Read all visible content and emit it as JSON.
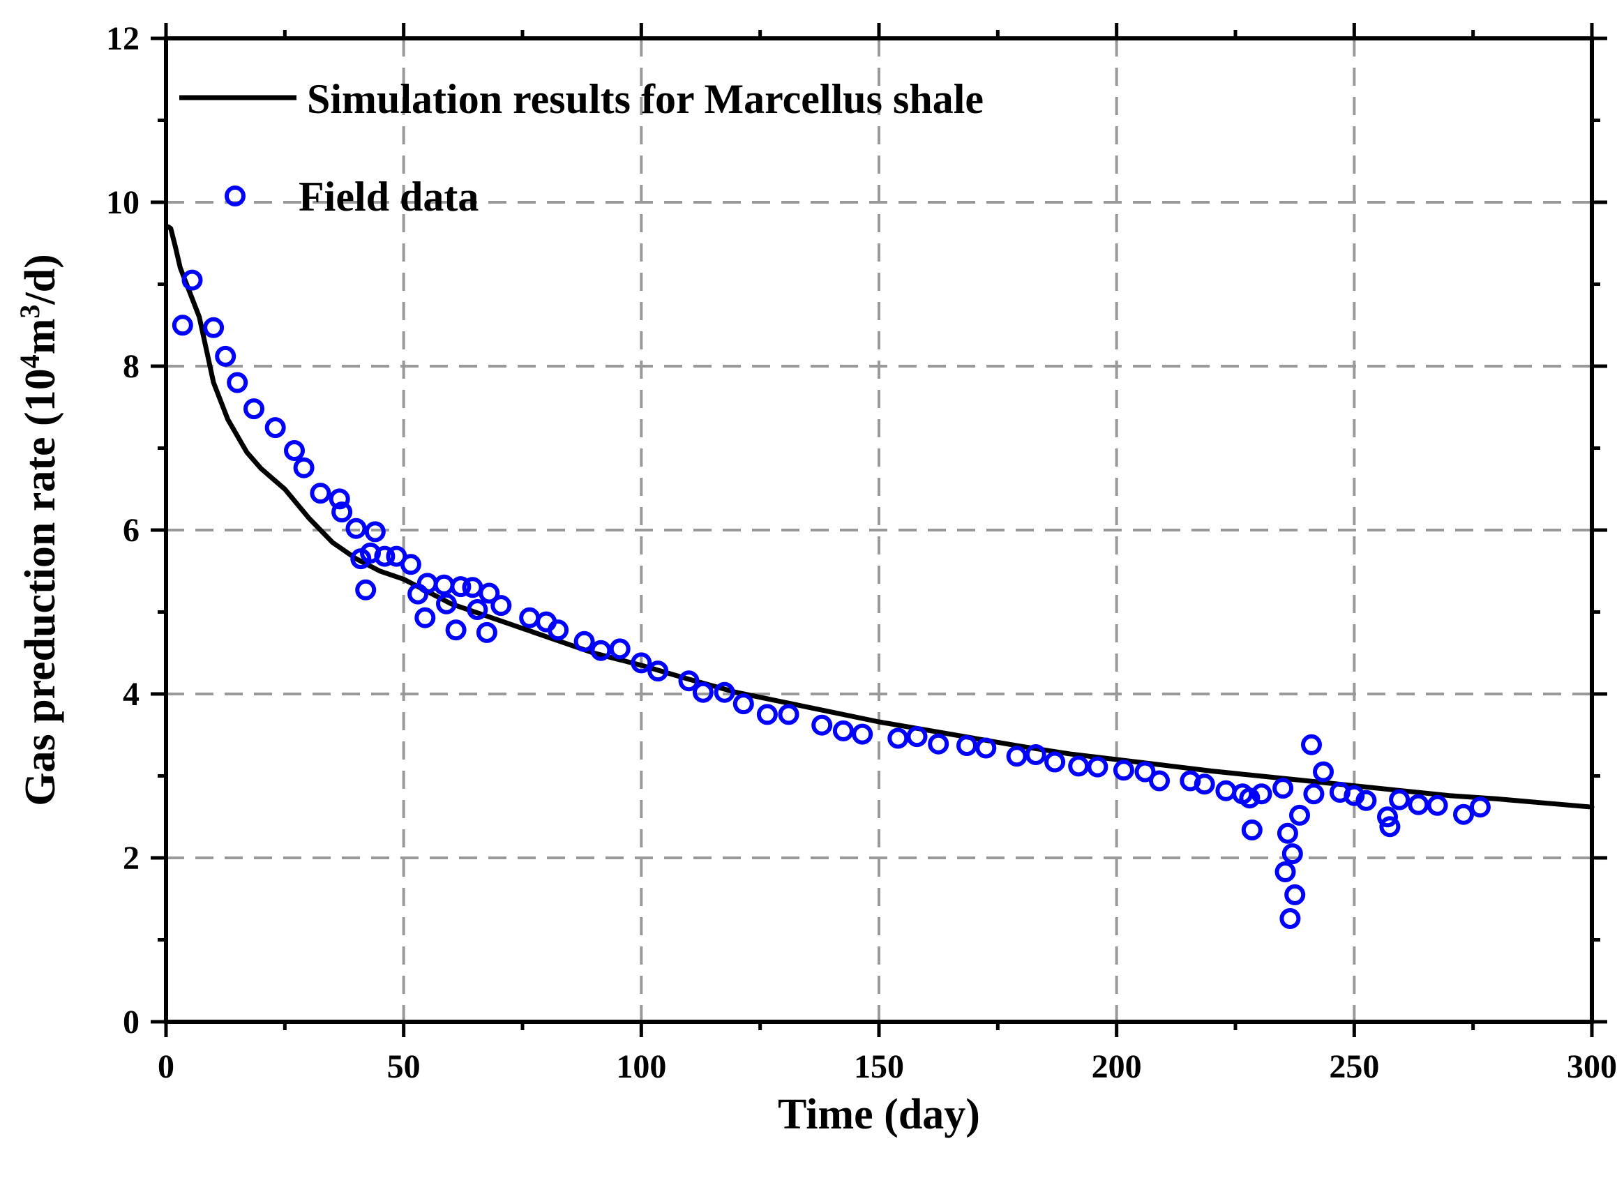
{
  "chart_data": {
    "type": "line+scatter",
    "title": "",
    "xlabel": "Time (day)",
    "ylabel": {
      "prefix": "Gas preduction rate (10",
      "sup1": "4",
      "mid": "m",
      "sup2": "3",
      "suffix": "/d)"
    },
    "xlim": [
      0,
      300
    ],
    "ylim": [
      0,
      12
    ],
    "xticks": [
      0,
      50,
      100,
      150,
      200,
      250,
      300
    ],
    "xtick_labels": [
      "0",
      "50",
      "100",
      "150",
      "200",
      "250",
      "300"
    ],
    "yticks": [
      0,
      2,
      4,
      6,
      8,
      10,
      12
    ],
    "ytick_labels": [
      "0",
      "2",
      "4",
      "6",
      "8",
      "10",
      "12"
    ],
    "grid": true,
    "legend_position": "top-left",
    "colors": {
      "simulation": "#000000",
      "field": "#0000ff",
      "grid": "#999999"
    },
    "series": [
      {
        "name": "Simulation results for Marcellus shale",
        "kind": "line",
        "x": [
          0.5,
          1,
          2,
          3,
          5,
          7,
          10,
          13,
          17,
          20,
          25,
          30,
          35,
          40,
          45,
          50,
          60,
          70,
          80,
          90,
          100,
          110,
          120,
          130,
          140,
          150,
          160,
          170,
          180,
          190,
          200,
          210,
          220,
          230,
          240,
          250,
          260,
          270,
          280,
          290,
          300
        ],
        "y": [
          9.7,
          9.68,
          9.45,
          9.2,
          8.9,
          8.6,
          7.8,
          7.35,
          6.95,
          6.75,
          6.5,
          6.15,
          5.85,
          5.65,
          5.5,
          5.4,
          5.1,
          4.9,
          4.7,
          4.5,
          4.35,
          4.18,
          4.02,
          3.9,
          3.78,
          3.66,
          3.56,
          3.46,
          3.36,
          3.27,
          3.2,
          3.13,
          3.06,
          3.0,
          2.94,
          2.88,
          2.82,
          2.76,
          2.72,
          2.67,
          2.62
        ]
      },
      {
        "name": "Field data",
        "kind": "scatter",
        "x": [
          3.5,
          5.5,
          10,
          12.5,
          15,
          18.5,
          23,
          27,
          29,
          32.5,
          36.5,
          37,
          40,
          41,
          42,
          43,
          44,
          46,
          48.5,
          51.5,
          53,
          54.5,
          55,
          58.5,
          59,
          61,
          62,
          64.5,
          65.5,
          67.5,
          68,
          70.5,
          76.5,
          80,
          82.5,
          88,
          91.5,
          95.5,
          100,
          103.5,
          110,
          113,
          117.5,
          121.5,
          126.5,
          131,
          138,
          142.5,
          146.5,
          154,
          158,
          162.5,
          168.5,
          172.5,
          179,
          183,
          187,
          192,
          196,
          201.5,
          206,
          209,
          215.5,
          218.5,
          223,
          226.5,
          228,
          228.5,
          230.5,
          235,
          235.5,
          236,
          236.5,
          237,
          237.5,
          238.5,
          241,
          241.5,
          243.5,
          247,
          250,
          252.5,
          257,
          257.5,
          259.5,
          263.5,
          267.5,
          273,
          276.5
        ],
        "y": [
          8.5,
          9.05,
          8.47,
          8.12,
          7.8,
          7.48,
          7.25,
          6.97,
          6.76,
          6.45,
          6.38,
          6.22,
          6.02,
          5.65,
          5.27,
          5.72,
          5.98,
          5.68,
          5.68,
          5.58,
          5.22,
          4.93,
          5.35,
          5.33,
          5.1,
          4.78,
          5.31,
          5.3,
          5.03,
          4.75,
          5.23,
          5.08,
          4.93,
          4.88,
          4.78,
          4.64,
          4.53,
          4.55,
          4.38,
          4.28,
          4.16,
          4.02,
          4.02,
          3.88,
          3.75,
          3.75,
          3.62,
          3.55,
          3.51,
          3.46,
          3.48,
          3.39,
          3.37,
          3.34,
          3.24,
          3.26,
          3.17,
          3.12,
          3.11,
          3.07,
          3.05,
          2.94,
          2.94,
          2.9,
          2.82,
          2.78,
          2.73,
          2.34,
          2.78,
          2.85,
          1.83,
          2.3,
          1.26,
          2.05,
          1.55,
          2.52,
          3.38,
          2.78,
          3.05,
          2.8,
          2.76,
          2.7,
          2.5,
          2.38,
          2.71,
          2.65,
          2.64,
          2.53,
          2.62
        ]
      }
    ]
  }
}
